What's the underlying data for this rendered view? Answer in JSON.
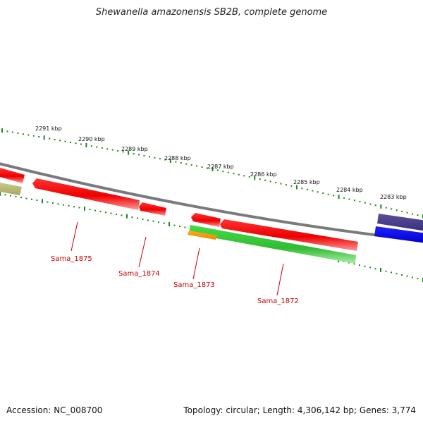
{
  "title": "Shewanella amazonensis SB2B, complete genome",
  "footer": {
    "accession": "Accession: NC_008700",
    "stats": "Topology: circular; Length: 4,306,142 bp; Genes: 3,774"
  },
  "colors": {
    "backbone": "#808080",
    "tick": "#1a8a1a",
    "cds": "#ee1111",
    "cds_light": "#ff9a9a",
    "rna_green": "#33cc33",
    "orange": "#ff9900",
    "olive": "#b8b870",
    "navy": "#4a3f8a",
    "blue": "#0000ee",
    "label": "#cc0000"
  },
  "scale_labels": [
    "2291 kbp",
    "2290 kbp",
    "2289 kbp",
    "2288 kbp",
    "2287 kbp",
    "2286 kbp",
    "2285 kbp",
    "2284 kbp",
    "2283 kbp"
  ],
  "gene_labels": [
    "Sama_1875",
    "Sama_1874",
    "Sama_1873",
    "Sama_1872"
  ]
}
